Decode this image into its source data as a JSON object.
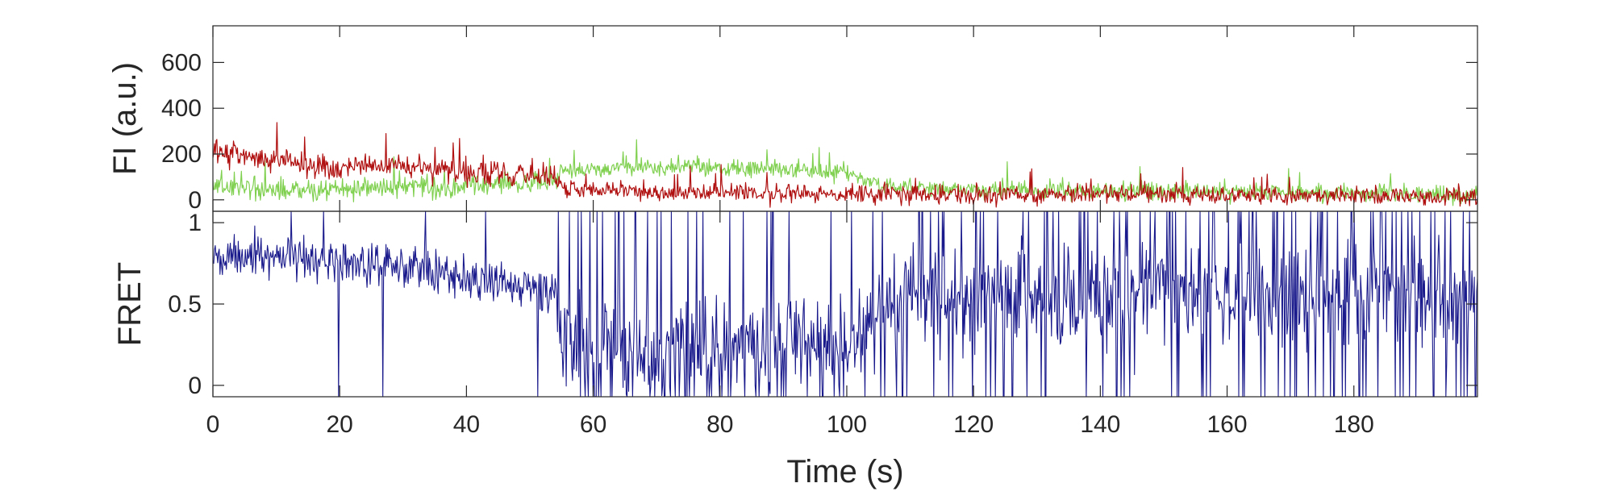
{
  "chart_data": [
    {
      "type": "line",
      "ylabel": "FI (a.u.)",
      "xlim": [
        0,
        199.5
      ],
      "ylim": [
        -50,
        760
      ],
      "yticks": [
        0,
        200,
        400,
        600
      ],
      "ytick_labels": [
        "0",
        "200",
        "400",
        "600"
      ],
      "grid": false,
      "legend": "none",
      "series": [
        {
          "color": "#80d050",
          "x": [
            0,
            5,
            10,
            15,
            20,
            25,
            30,
            35,
            40,
            45,
            50,
            54,
            55,
            56,
            60,
            65,
            70,
            75,
            80,
            85,
            90,
            95,
            100,
            105,
            110,
            120,
            130,
            140,
            150,
            160,
            170,
            180,
            190,
            199.5
          ],
          "y": [
            60,
            50,
            40,
            40,
            45,
            55,
            55,
            55,
            65,
            70,
            75,
            80,
            120,
            130,
            135,
            140,
            145,
            150,
            140,
            135,
            130,
            125,
            120,
            65,
            50,
            45,
            40,
            40,
            35,
            35,
            30,
            30,
            25,
            20
          ]
        },
        {
          "color": "#b01010",
          "x": [
            0,
            5,
            10,
            15,
            20,
            25,
            30,
            35,
            40,
            45,
            50,
            54,
            55,
            56,
            60,
            65,
            70,
            75,
            80,
            85,
            90,
            95,
            100,
            105,
            110,
            120,
            130,
            140,
            150,
            160,
            170,
            180,
            190,
            199.5
          ],
          "y": [
            210,
            190,
            170,
            150,
            140,
            145,
            150,
            130,
            120,
            115,
            110,
            105,
            60,
            45,
            40,
            40,
            35,
            30,
            30,
            30,
            25,
            25,
            25,
            25,
            25,
            25,
            25,
            25,
            25,
            20,
            20,
            20,
            15,
            10
          ]
        }
      ]
    },
    {
      "type": "line",
      "xlabel": "Time (s)",
      "ylabel": "FRET",
      "xlim": [
        0,
        199.5
      ],
      "ylim": [
        -0.07,
        1.07
      ],
      "xticks": [
        0,
        20,
        40,
        60,
        80,
        100,
        120,
        140,
        160,
        180
      ],
      "xtick_labels": [
        "0",
        "20",
        "40",
        "60",
        "80",
        "100",
        "120",
        "140",
        "160",
        "180"
      ],
      "yticks": [
        0,
        0.5,
        1
      ],
      "ytick_labels": [
        "0",
        "0.5",
        "1"
      ],
      "grid": false,
      "legend": "none",
      "series": [
        {
          "color": "#1a1a8c",
          "x": [
            0,
            5,
            10,
            15,
            20,
            25,
            30,
            35,
            40,
            45,
            50,
            54,
            55,
            56,
            60,
            65,
            70,
            75,
            80,
            85,
            90,
            95,
            100,
            105,
            110,
            120,
            130,
            140,
            150,
            160,
            170,
            180,
            190,
            199.5
          ],
          "y": [
            0.78,
            0.79,
            0.8,
            0.79,
            0.76,
            0.73,
            0.74,
            0.71,
            0.65,
            0.62,
            0.6,
            0.56,
            0.33,
            0.26,
            0.23,
            0.22,
            0.2,
            0.18,
            0.22,
            0.25,
            0.24,
            0.22,
            0.2,
            0.45,
            0.55,
            0.55,
            0.55,
            0.55,
            0.55,
            0.55,
            0.55,
            0.55,
            0.55,
            0.55
          ]
        }
      ]
    }
  ]
}
